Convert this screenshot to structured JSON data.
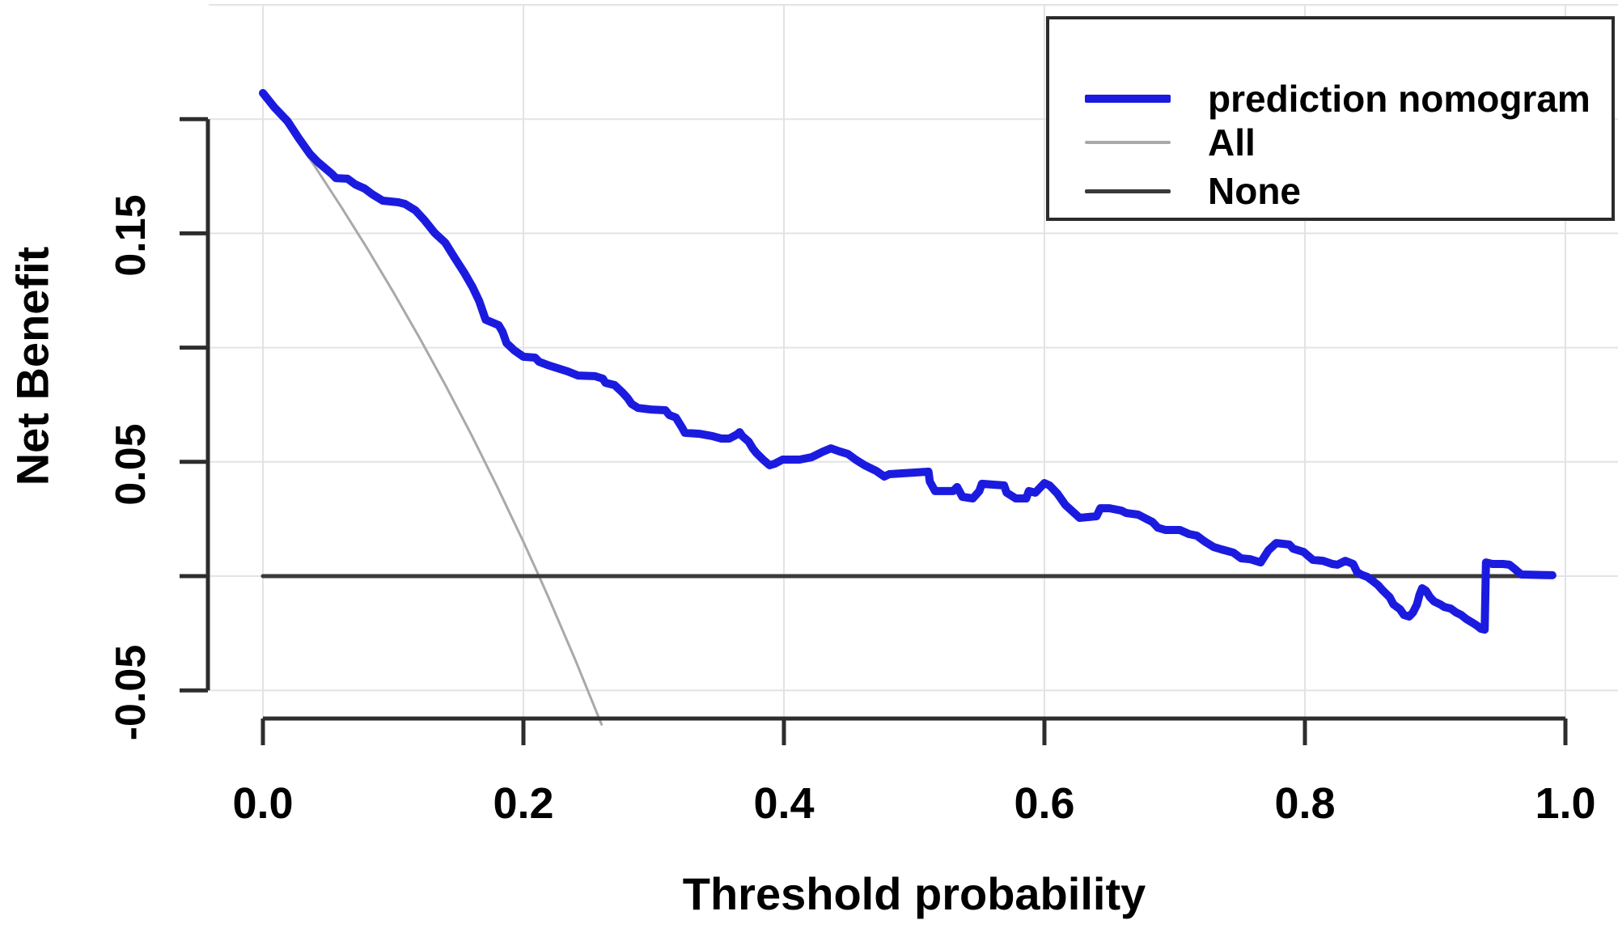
{
  "chart_data": {
    "type": "line",
    "title": "",
    "xlabel": "Threshold probability",
    "ylabel": "Net Benefit",
    "xlim": [
      0.0,
      1.0
    ],
    "ylim": [
      -0.072,
      0.25
    ],
    "grid": true,
    "legend_position": "top-right",
    "x_ticks": [
      0.0,
      0.2,
      0.4,
      0.6,
      0.8,
      1.0
    ],
    "x_tick_labels": [
      "0.0",
      "0.2",
      "0.4",
      "0.6",
      "0.8",
      "1.0"
    ],
    "y_ticks": [
      0.2,
      0.15,
      0.1,
      0.05,
      0.0,
      -0.05
    ],
    "y_labeled_ticks": [
      0.15,
      0.05,
      -0.05
    ],
    "y_tick_labels": [
      "0.15",
      "0.05",
      "-0.05"
    ],
    "grid_y_values": [
      0.25,
      0.2,
      0.15,
      0.1,
      0.05,
      0.0,
      -0.05
    ],
    "colors": {
      "prediction_nomogram": "#1b1be0",
      "all": "#a9a9a9",
      "none": "#3a3a3a",
      "grid": "#e3e3e3",
      "axis": "#2d2d2d",
      "text": "#000000",
      "legend_border": "#2b2b2b",
      "background": "#ffffff"
    },
    "series": [
      {
        "name": "prediction nomogram",
        "color": "#1b1be0",
        "stroke_width": 10,
        "points": [
          [
            0.0,
            0.2114
          ],
          [
            0.009,
            0.205
          ],
          [
            0.019,
            0.199
          ],
          [
            0.028,
            0.1912
          ],
          [
            0.036,
            0.1848
          ],
          [
            0.042,
            0.1813
          ],
          [
            0.053,
            0.176
          ],
          [
            0.056,
            0.1742
          ],
          [
            0.065,
            0.1739
          ],
          [
            0.071,
            0.1714
          ],
          [
            0.078,
            0.1696
          ],
          [
            0.084,
            0.1671
          ],
          [
            0.092,
            0.1643
          ],
          [
            0.104,
            0.1636
          ],
          [
            0.109,
            0.1629
          ],
          [
            0.117,
            0.1601
          ],
          [
            0.124,
            0.1558
          ],
          [
            0.132,
            0.1501
          ],
          [
            0.14,
            0.1459
          ],
          [
            0.147,
            0.1395
          ],
          [
            0.155,
            0.1324
          ],
          [
            0.161,
            0.1264
          ],
          [
            0.166,
            0.1204
          ],
          [
            0.171,
            0.1122
          ],
          [
            0.181,
            0.1098
          ],
          [
            0.184,
            0.1069
          ],
          [
            0.187,
            0.102
          ],
          [
            0.193,
            0.0988
          ],
          [
            0.2,
            0.096
          ],
          [
            0.209,
            0.0956
          ],
          [
            0.212,
            0.0938
          ],
          [
            0.22,
            0.0921
          ],
          [
            0.234,
            0.0896
          ],
          [
            0.242,
            0.0878
          ],
          [
            0.255,
            0.0875
          ],
          [
            0.261,
            0.0864
          ],
          [
            0.263,
            0.0846
          ],
          [
            0.27,
            0.0836
          ],
          [
            0.276,
            0.0804
          ],
          [
            0.28,
            0.0779
          ],
          [
            0.283,
            0.0754
          ],
          [
            0.288,
            0.0736
          ],
          [
            0.298,
            0.0729
          ],
          [
            0.309,
            0.0726
          ],
          [
            0.312,
            0.0705
          ],
          [
            0.317,
            0.0694
          ],
          [
            0.322,
            0.0648
          ],
          [
            0.324,
            0.0627
          ],
          [
            0.335,
            0.0623
          ],
          [
            0.345,
            0.0613
          ],
          [
            0.352,
            0.0602
          ],
          [
            0.358,
            0.0602
          ],
          [
            0.364,
            0.062
          ],
          [
            0.366,
            0.063
          ],
          [
            0.368,
            0.0613
          ],
          [
            0.373,
            0.0588
          ],
          [
            0.376,
            0.0559
          ],
          [
            0.379,
            0.0538
          ],
          [
            0.384,
            0.051
          ],
          [
            0.389,
            0.0485
          ],
          [
            0.393,
            0.0492
          ],
          [
            0.399,
            0.051
          ],
          [
            0.412,
            0.051
          ],
          [
            0.421,
            0.052
          ],
          [
            0.43,
            0.0545
          ],
          [
            0.436,
            0.0559
          ],
          [
            0.443,
            0.0545
          ],
          [
            0.449,
            0.0535
          ],
          [
            0.455,
            0.051
          ],
          [
            0.462,
            0.0485
          ],
          [
            0.471,
            0.046
          ],
          [
            0.477,
            0.0436
          ],
          [
            0.481,
            0.0446
          ],
          [
            0.511,
            0.0457
          ],
          [
            0.512,
            0.0414
          ],
          [
            0.516,
            0.0372
          ],
          [
            0.53,
            0.0372
          ],
          [
            0.533,
            0.039
          ],
          [
            0.537,
            0.0347
          ],
          [
            0.545,
            0.034
          ],
          [
            0.55,
            0.0372
          ],
          [
            0.552,
            0.0404
          ],
          [
            0.561,
            0.04
          ],
          [
            0.569,
            0.0397
          ],
          [
            0.571,
            0.0365
          ],
          [
            0.578,
            0.034
          ],
          [
            0.586,
            0.034
          ],
          [
            0.588,
            0.0372
          ],
          [
            0.593,
            0.0365
          ],
          [
            0.6,
            0.0407
          ],
          [
            0.604,
            0.0397
          ],
          [
            0.61,
            0.0361
          ],
          [
            0.616,
            0.0312
          ],
          [
            0.623,
            0.0276
          ],
          [
            0.627,
            0.0255
          ],
          [
            0.64,
            0.0262
          ],
          [
            0.643,
            0.0297
          ],
          [
            0.65,
            0.0297
          ],
          [
            0.659,
            0.0287
          ],
          [
            0.663,
            0.0276
          ],
          [
            0.672,
            0.0269
          ],
          [
            0.678,
            0.0251
          ],
          [
            0.683,
            0.0237
          ],
          [
            0.687,
            0.0212
          ],
          [
            0.693,
            0.0202
          ],
          [
            0.704,
            0.0202
          ],
          [
            0.711,
            0.0184
          ],
          [
            0.717,
            0.0177
          ],
          [
            0.723,
            0.0152
          ],
          [
            0.73,
            0.0127
          ],
          [
            0.736,
            0.0117
          ],
          [
            0.745,
            0.0103
          ],
          [
            0.751,
            0.0078
          ],
          [
            0.758,
            0.0074
          ],
          [
            0.766,
            0.006
          ],
          [
            0.772,
            0.0113
          ],
          [
            0.778,
            0.0145
          ],
          [
            0.788,
            0.0138
          ],
          [
            0.791,
            0.012
          ],
          [
            0.799,
            0.0106
          ],
          [
            0.806,
            0.0071
          ],
          [
            0.814,
            0.0067
          ],
          [
            0.821,
            0.0053
          ],
          [
            0.825,
            0.005
          ],
          [
            0.831,
            0.0067
          ],
          [
            0.837,
            0.0053
          ],
          [
            0.84,
            0.0018
          ],
          [
            0.843,
            0.0007
          ],
          [
            0.848,
            -0.0004
          ],
          [
            0.852,
            -0.0021
          ],
          [
            0.856,
            -0.0039
          ],
          [
            0.86,
            -0.0064
          ],
          [
            0.865,
            -0.0092
          ],
          [
            0.868,
            -0.0124
          ],
          [
            0.873,
            -0.0145
          ],
          [
            0.876,
            -0.017
          ],
          [
            0.88,
            -0.0177
          ],
          [
            0.883,
            -0.0159
          ],
          [
            0.886,
            -0.0124
          ],
          [
            0.888,
            -0.0081
          ],
          [
            0.89,
            -0.0053
          ],
          [
            0.893,
            -0.0064
          ],
          [
            0.896,
            -0.0092
          ],
          [
            0.899,
            -0.011
          ],
          [
            0.904,
            -0.0124
          ],
          [
            0.907,
            -0.0135
          ],
          [
            0.912,
            -0.0142
          ],
          [
            0.916,
            -0.0159
          ],
          [
            0.92,
            -0.017
          ],
          [
            0.924,
            -0.0188
          ],
          [
            0.929,
            -0.0205
          ],
          [
            0.932,
            -0.0216
          ],
          [
            0.935,
            -0.023
          ],
          [
            0.938,
            -0.0234
          ],
          [
            0.939,
            0.006
          ],
          [
            0.944,
            0.0053
          ],
          [
            0.952,
            0.0053
          ],
          [
            0.957,
            0.005
          ],
          [
            0.961,
            0.0032
          ],
          [
            0.966,
            0.0007
          ],
          [
            0.99,
            0.0004
          ]
        ]
      },
      {
        "name": "All",
        "color": "#a9a9a9",
        "stroke_width": 3,
        "points": [
          [
            0.0,
            0.212
          ],
          [
            0.02,
            0.1959
          ],
          [
            0.04,
            0.1792
          ],
          [
            0.06,
            0.1617
          ],
          [
            0.08,
            0.1435
          ],
          [
            0.1,
            0.1244
          ],
          [
            0.12,
            0.1045
          ],
          [
            0.14,
            0.0837
          ],
          [
            0.16,
            0.0619
          ],
          [
            0.18,
            0.039
          ],
          [
            0.2,
            0.015
          ],
          [
            0.212,
            0.0
          ],
          [
            0.22,
            -0.0103
          ],
          [
            0.24,
            -0.0369
          ],
          [
            0.26,
            -0.0649
          ]
        ]
      },
      {
        "name": "None",
        "color": "#3a3a3a",
        "stroke_width": 5,
        "points": [
          [
            0.0,
            0.0
          ],
          [
            0.99,
            0.0
          ]
        ]
      }
    ]
  },
  "legend": {
    "entries": [
      {
        "label": "prediction nomogram"
      },
      {
        "label": "All"
      },
      {
        "label": "None"
      }
    ]
  }
}
